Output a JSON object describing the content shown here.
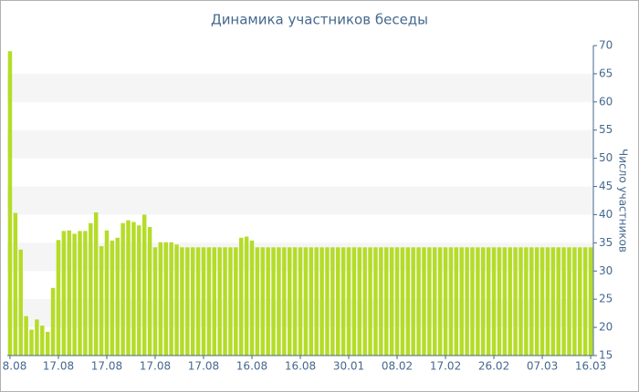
{
  "chart_data": {
    "type": "bar",
    "title": "Динамика участников беседы",
    "y_label": "Число участников",
    "categories": [
      "8.08",
      null,
      null,
      null,
      null,
      null,
      null,
      null,
      null,
      "17.08",
      null,
      null,
      null,
      null,
      null,
      null,
      null,
      null,
      "17.08",
      null,
      null,
      null,
      null,
      null,
      null,
      null,
      null,
      "17.08",
      null,
      null,
      null,
      null,
      null,
      null,
      null,
      null,
      "17.08",
      null,
      null,
      null,
      null,
      null,
      null,
      null,
      null,
      "16.08",
      null,
      null,
      null,
      null,
      null,
      null,
      null,
      null,
      "16.08",
      null,
      null,
      null,
      null,
      null,
      null,
      null,
      null,
      "30.01",
      null,
      null,
      null,
      null,
      null,
      null,
      null,
      null,
      "08.02",
      null,
      null,
      null,
      null,
      null,
      null,
      null,
      null,
      "17.02",
      null,
      null,
      null,
      null,
      null,
      null,
      null,
      null,
      "26.02",
      null,
      null,
      null,
      null,
      null,
      null,
      null,
      null,
      "07.03",
      null,
      null,
      null,
      null,
      null,
      null,
      null,
      null,
      "16.03"
    ],
    "values": [
      69,
      40.3,
      33.8,
      22,
      19.6,
      21.4,
      20.3,
      19.2,
      27,
      35.5,
      37.1,
      37.2,
      36.6,
      37.1,
      37.1,
      38.5,
      40.4,
      34.4,
      37.2,
      35.4,
      35.9,
      38.5,
      39,
      38.7,
      38.1,
      40,
      37.8,
      34.2,
      35.1,
      35.1,
      35.1,
      34.7,
      34.2,
      34.2,
      34.2,
      34.2,
      34.2,
      34.2,
      34.2,
      34.2,
      34.2,
      34.2,
      34.2,
      35.9,
      36.1,
      35.4,
      34.2,
      34.2,
      34.2,
      34.2,
      34.2,
      34.2,
      34.2,
      34.2,
      34.2,
      34.2,
      34.2,
      34.2,
      34.2,
      34.2,
      34.2,
      34.2,
      34.2,
      34.2,
      34.2,
      34.2,
      34.2,
      34.2,
      34.2,
      34.2,
      34.2,
      34.2,
      34.2,
      34.2,
      34.2,
      34.2,
      34.2,
      34.2,
      34.2,
      34.2,
      34.2,
      34.2,
      34.2,
      34.2,
      34.2,
      34.2,
      34.2,
      34.2,
      34.2,
      34.2,
      34.2,
      34.2,
      34.2,
      34.2,
      34.2,
      34.2,
      34.2,
      34.2,
      34.2,
      34.2,
      34.2,
      34.2,
      34.2,
      34.2,
      34.2,
      34.2,
      34.2,
      34.2,
      34.2
    ],
    "color": "#b5dc28",
    "ylim": [
      15,
      70
    ],
    "yticks": [
      15,
      20,
      25,
      30,
      35,
      40,
      45,
      50,
      55,
      60,
      65,
      70
    ],
    "grid_bands": true
  }
}
